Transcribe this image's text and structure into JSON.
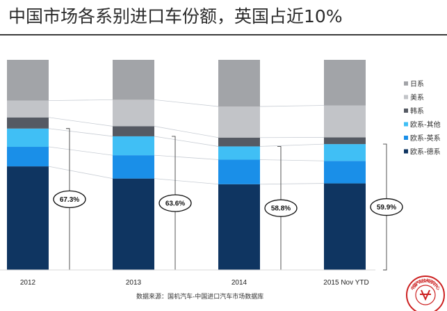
{
  "title": "中国市场各系别进口车份额，英国占近10%",
  "source": "数据来源：国机汽车-中国进口汽车市场数据库",
  "stamp_text": "中国汽车技术研究中心",
  "chart_data": {
    "type": "bar",
    "stacked": true,
    "percent_stacked": true,
    "categories": [
      "2012",
      "2013",
      "2014",
      "2015 Nov YTD"
    ],
    "series": [
      {
        "name": "欧系-德系",
        "color": "#0f3561",
        "values": [
          49.3,
          43.5,
          40.8,
          41.2
        ]
      },
      {
        "name": "欧系-英系",
        "color": "#1a8fe8",
        "values": [
          9.3,
          11.1,
          11.7,
          10.7
        ]
      },
      {
        "name": "欧系-其他",
        "color": "#40bff5",
        "values": [
          8.7,
          9.0,
          6.3,
          8.0
        ]
      },
      {
        "name": "韩系",
        "color": "#555a63",
        "values": [
          5.3,
          4.8,
          4.2,
          3.2
        ]
      },
      {
        "name": "美系",
        "color": "#c2c4c8",
        "values": [
          8.0,
          12.6,
          14.8,
          15.2
        ]
      },
      {
        "name": "日系",
        "color": "#a2a4a8",
        "values": [
          19.4,
          19.0,
          22.2,
          21.7
        ]
      }
    ],
    "legend_order": [
      "日系",
      "美系",
      "韩系",
      "欧系-其他",
      "欧系-英系",
      "欧系-德系"
    ],
    "legend_position": "right",
    "annotations": [
      "67.3%",
      "63.6%",
      "58.8%",
      "59.9%"
    ],
    "ylim": [
      0,
      100
    ],
    "grid": false
  }
}
